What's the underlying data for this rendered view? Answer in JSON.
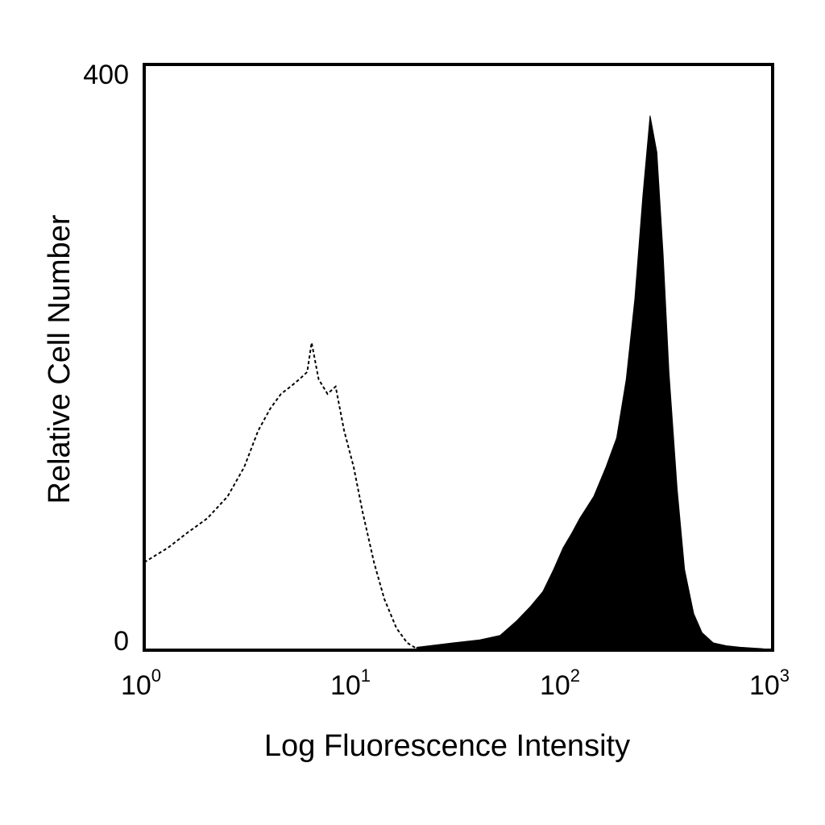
{
  "chart_data": {
    "type": "area",
    "title": "",
    "xlabel": "Log Fluorescence Intensity",
    "ylabel": "Relative Cell Number",
    "xscale": "log",
    "xlim": [
      1,
      1000
    ],
    "ylim": [
      0,
      400
    ],
    "x_ticks": [
      {
        "value": 1,
        "base": "10",
        "exp": "0"
      },
      {
        "value": 10,
        "base": "10",
        "exp": "1"
      },
      {
        "value": 100,
        "base": "10",
        "exp": "2"
      },
      {
        "value": 1000,
        "base": "10",
        "exp": "3"
      }
    ],
    "y_ticks": [
      {
        "value": 0,
        "label": "0"
      },
      {
        "value": 400,
        "label": "400"
      }
    ],
    "grid": false,
    "legend": "none",
    "series": [
      {
        "style": "dotted-outline",
        "color": "#000000",
        "x": [
          1.0,
          1.3,
          1.6,
          2.0,
          2.5,
          3.0,
          3.5,
          4.0,
          4.5,
          5.0,
          5.5,
          6.0,
          6.3,
          6.8,
          7.5,
          8.2,
          9.0,
          10.0,
          11.0,
          12.5,
          14.0,
          16.0,
          18.0,
          20.0,
          23.0
        ],
        "values": [
          60,
          70,
          80,
          90,
          105,
          125,
          150,
          165,
          175,
          180,
          185,
          190,
          210,
          185,
          175,
          180,
          150,
          125,
          95,
          60,
          35,
          15,
          5,
          1,
          0
        ]
      },
      {
        "style": "filled",
        "color": "#000000",
        "x": [
          20,
          30,
          40,
          50,
          60,
          70,
          80,
          90,
          100,
          110,
          120,
          140,
          160,
          180,
          200,
          220,
          240,
          260,
          280,
          300,
          320,
          350,
          380,
          420,
          460,
          520,
          600,
          700,
          900
        ],
        "values": [
          2,
          5,
          7,
          10,
          20,
          30,
          40,
          55,
          70,
          80,
          90,
          105,
          125,
          145,
          185,
          240,
          310,
          365,
          340,
          270,
          190,
          110,
          55,
          25,
          12,
          5,
          3,
          2,
          1
        ]
      }
    ]
  }
}
